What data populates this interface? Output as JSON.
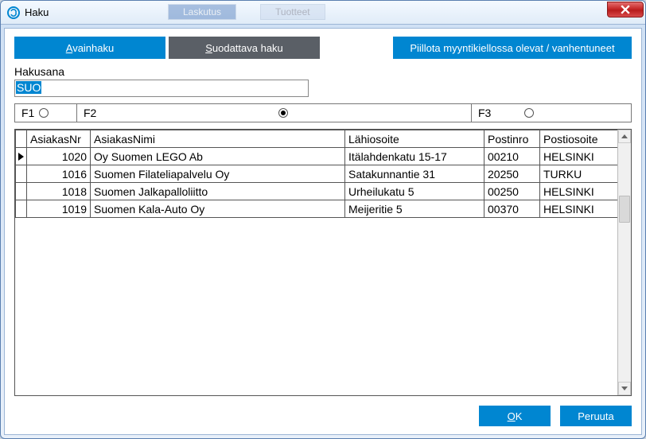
{
  "colors": {
    "primary": "#0086d1",
    "secondary": "#5a5f66",
    "window_border": "#5a7fb0",
    "close_bg": "#c62828"
  },
  "window": {
    "title": "Haku",
    "bg_tabs": [
      "Laskutus",
      "Tuotteet"
    ]
  },
  "tabs": {
    "avainhaku": "Avainhaku",
    "avainhaku_ul": "A",
    "suodattava": "Suodattava haku",
    "suodattava_ul": "S",
    "piilota": "Piillota myyntikiellossa olevat / vanhentuneet"
  },
  "search": {
    "label": "Hakusana",
    "value": "SUO"
  },
  "radios": {
    "f1": "F1",
    "f2": "F2",
    "f3": "F3",
    "selected": "F2"
  },
  "table": {
    "columns": {
      "nr": "AsiakasNr",
      "nimi": "AsiakasNimi",
      "lahi": "Lähiosoite",
      "pnro": "Postinro",
      "pos": "Postiosoite"
    },
    "rows": [
      {
        "nr": "1020",
        "nimi": "Oy Suomen LEGO Ab",
        "lahi": "Itälahdenkatu 15-17",
        "pnro": "00210",
        "pos": "HELSINKI",
        "selected": true
      },
      {
        "nr": "1016",
        "nimi": "Suomen Filateliapalvelu Oy",
        "lahi": "Satakunnantie 31",
        "pnro": "20250",
        "pos": "TURKU",
        "selected": false
      },
      {
        "nr": "1018",
        "nimi": "Suomen Jalkapalloliitto",
        "lahi": "Urheilukatu 5",
        "pnro": "00250",
        "pos": "HELSINKI",
        "selected": false
      },
      {
        "nr": "1019",
        "nimi": "Suomen Kala-Auto Oy",
        "lahi": "Meijeritie 5",
        "pnro": "00370",
        "pos": "HELSINKI",
        "selected": false
      }
    ]
  },
  "footer": {
    "ok": "OK",
    "ok_ul": "O",
    "cancel": "Peruuta"
  }
}
